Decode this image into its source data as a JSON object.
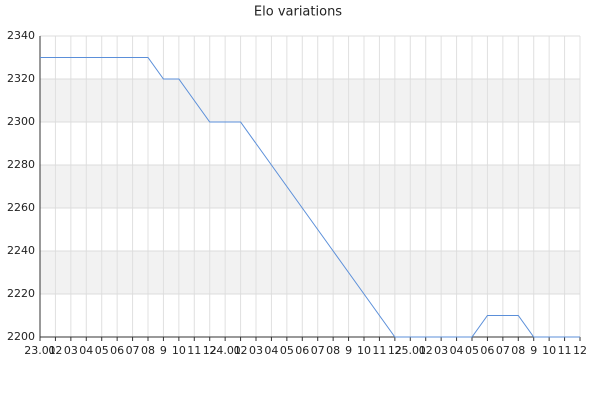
{
  "chart_data": {
    "type": "line",
    "title": "Elo variations",
    "categories": [
      "23.01",
      "02",
      "03",
      "04",
      "05",
      "06",
      "07",
      "08",
      "9",
      "10",
      "11",
      "12",
      "24.01",
      "02",
      "03",
      "04",
      "05",
      "06",
      "07",
      "08",
      "9",
      "10",
      "11",
      "12",
      "25.01",
      "02",
      "03",
      "04",
      "05",
      "06",
      "07",
      "08",
      "9",
      "10",
      "11",
      "12"
    ],
    "series": [
      {
        "name": "Elo",
        "color": "#5b8fd9",
        "values": [
          2330,
          2330,
          2330,
          2330,
          2330,
          2330,
          2330,
          2330,
          2320,
          2320,
          2310,
          2300,
          2300,
          2300,
          2290,
          2280,
          2270,
          2260,
          2250,
          2240,
          2230,
          2220,
          2210,
          2200,
          2200,
          2200,
          2200,
          2200,
          2200,
          2210,
          2210,
          2210,
          2200,
          2200,
          2200,
          2200
        ]
      }
    ],
    "ylim": [
      2200,
      2340
    ],
    "yticks": [
      2200,
      2220,
      2240,
      2260,
      2280,
      2300,
      2320,
      2340
    ],
    "grid": true
  }
}
